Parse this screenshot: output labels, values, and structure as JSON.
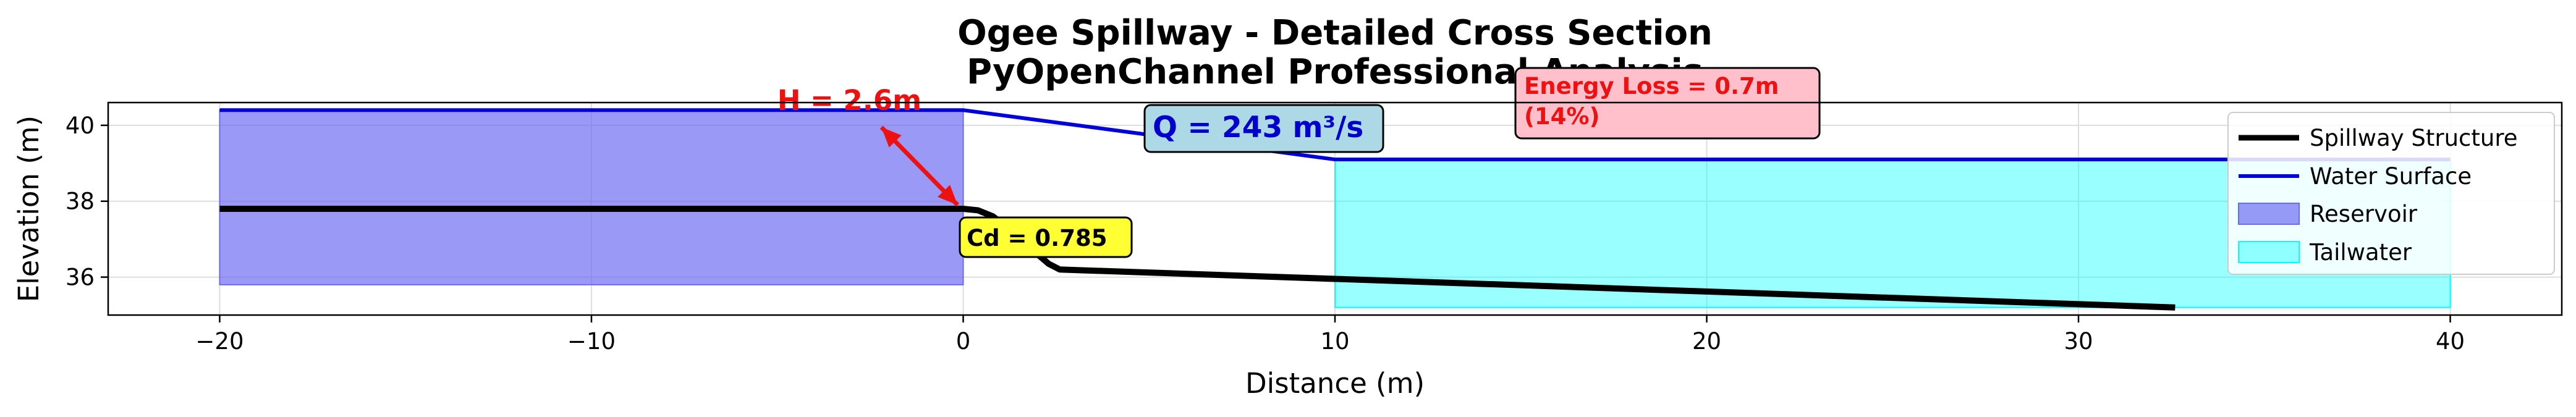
{
  "colors": {
    "structure": "#000000",
    "water_surface": "#0000dd",
    "reservoir": "#6a6af2",
    "tailwater": "#00ffff",
    "head_text": "#ee1111",
    "arrow": "#ee1111",
    "q_text": "#0000cc",
    "q_box": "#add8e6",
    "cd_box": "#ffff33",
    "energy_text": "#ee1111",
    "energy_box": "#ffc0cb"
  },
  "chart_data": {
    "type": "line",
    "title": "Ogee Spillway - Detailed Cross Section",
    "subtitle": "PyOpenChannel Professional Analysis",
    "xlabel": "Distance (m)",
    "ylabel": "Elevation (m)",
    "xlim": [
      -23,
      43
    ],
    "ylim": [
      35,
      40.6
    ],
    "xticks": [
      -20,
      -10,
      0,
      10,
      20,
      30,
      40
    ],
    "xtick_labels": [
      "−20",
      "−10",
      "0",
      "10",
      "20",
      "30",
      "40"
    ],
    "yticks": [
      36,
      38,
      40
    ],
    "ytick_labels": [
      "36",
      "38",
      "40"
    ],
    "grid": true,
    "legend_position": "upper right",
    "series": [
      {
        "name": "Spillway Structure",
        "kind": "line",
        "x": [
          -20,
          0,
          0.4,
          0.8,
          1.2,
          1.6,
          2.0,
          2.3,
          2.6,
          32.6
        ],
        "y": [
          37.8,
          37.8,
          37.76,
          37.6,
          37.3,
          36.95,
          36.6,
          36.35,
          36.2,
          35.2
        ]
      },
      {
        "name": "Water Surface",
        "kind": "line",
        "x": [
          -20,
          0,
          10,
          40
        ],
        "y": [
          40.4,
          40.4,
          39.1,
          39.1
        ]
      },
      {
        "name": "Reservoir",
        "kind": "fill",
        "x": [
          -20,
          0
        ],
        "y_low": 35.8,
        "y_high": 40.4
      },
      {
        "name": "Tailwater",
        "kind": "fill",
        "x": [
          10,
          40
        ],
        "y_low": 35.2,
        "y_high": 39.1
      }
    ],
    "annotations": {
      "head_label": "H = 2.6m",
      "flow_label": "Q = 243 m³/s",
      "cd_label": "Cd = 0.785",
      "energy_loss_line1": "Energy Loss = 0.7m",
      "energy_loss_line2": "(14%)"
    }
  }
}
